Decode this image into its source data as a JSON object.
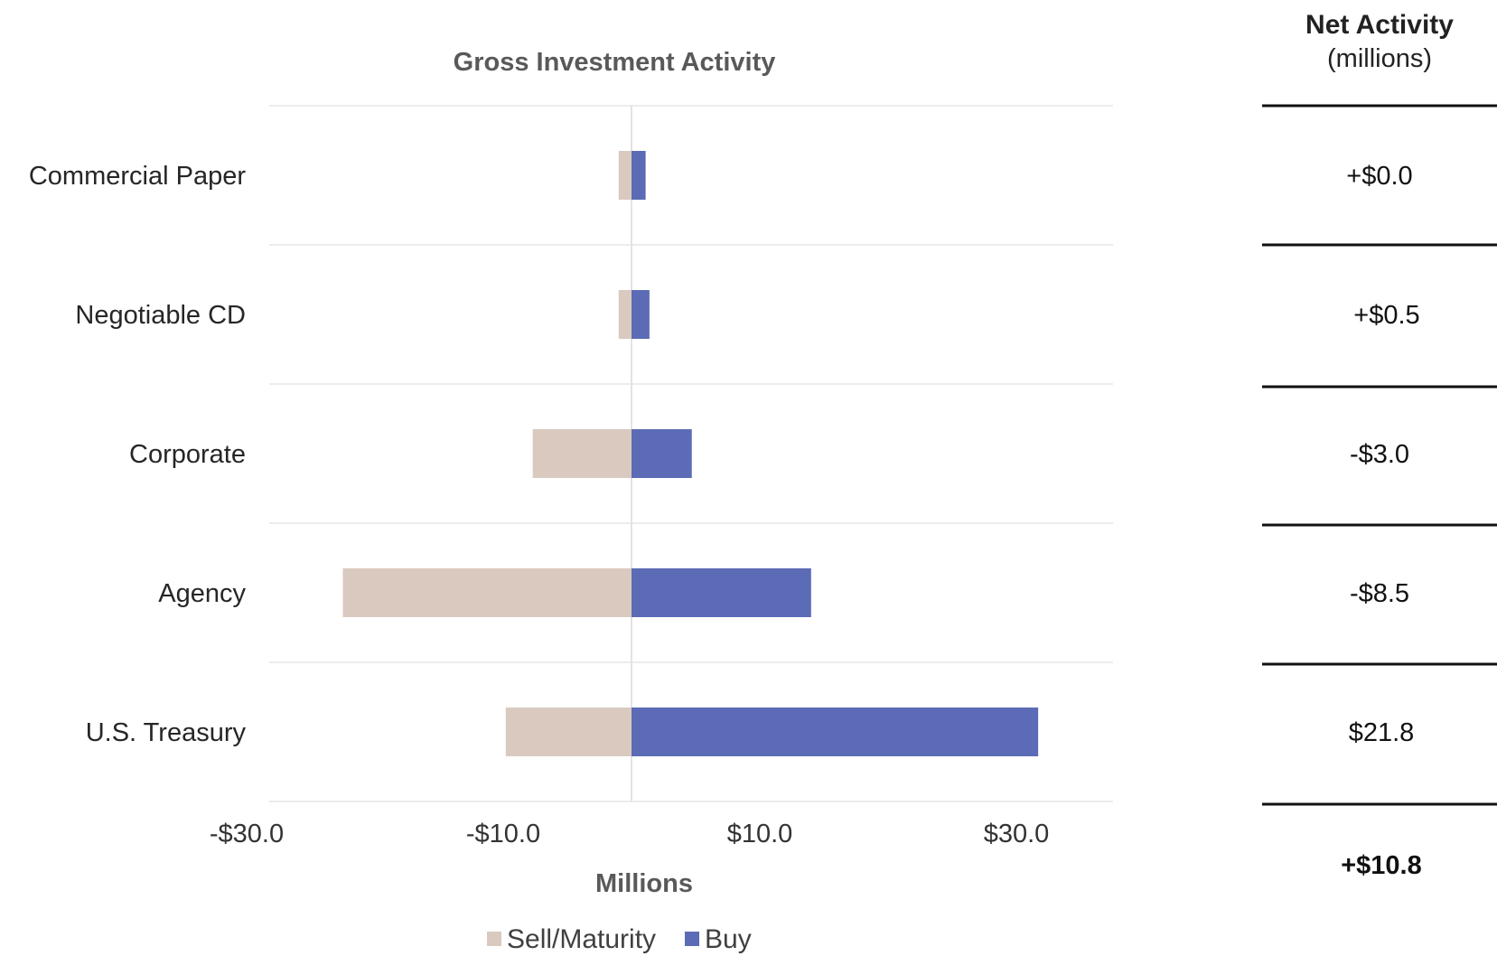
{
  "chart_data": {
    "type": "bar",
    "orientation": "horizontal",
    "stacked": "diverging",
    "title": "Gross Investment Activity",
    "xlabel": "Millions",
    "ylabel": "",
    "categories": [
      "Commercial Paper",
      "Negotiable CD",
      "Corporate",
      "Agency",
      "U.S. Treasury"
    ],
    "series": [
      {
        "name": "Sell/Maturity",
        "values": [
          -1.0,
          -1.0,
          -7.7,
          -22.5,
          -9.8
        ]
      },
      {
        "name": "Buy",
        "values": [
          1.1,
          1.4,
          4.7,
          14.0,
          31.7
        ]
      }
    ],
    "xlim": [
      -30,
      40
    ],
    "x_ticks": [
      "-$30.0",
      "-$10.0",
      "$10.0",
      "$30.0"
    ],
    "x_tick_values": [
      -30,
      -10,
      10,
      30
    ],
    "grid": true,
    "legend_position": "bottom",
    "colors": {
      "sell": "#d9c9bf",
      "buy": "#5b6bb5"
    }
  },
  "net_activity": {
    "header": "Net Activity",
    "subheader": "(millions)",
    "values": [
      "+$0.0",
      "+$0.5",
      "-$3.0",
      "-$8.5",
      "$21.8"
    ],
    "total": "+$10.8"
  }
}
